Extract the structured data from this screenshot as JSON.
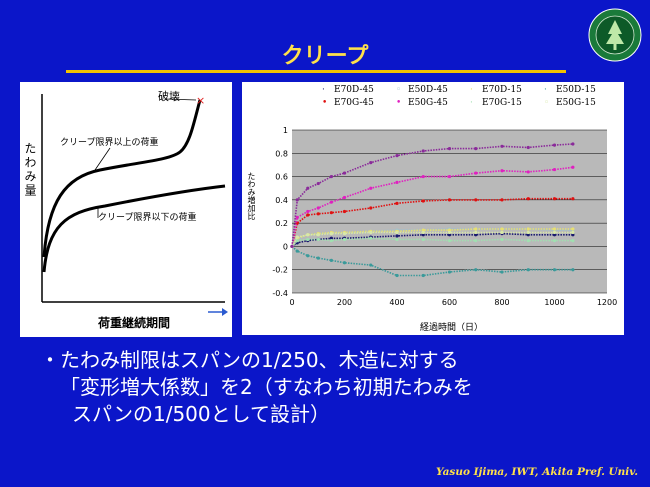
{
  "slide": {
    "title": "クリープ",
    "footer": "Yasuo Ijima, IWT, Akita Pref.  Univ."
  },
  "concept_diagram": {
    "y_axis_label": "たわみ量",
    "x_axis_label": "荷重継続期間",
    "label_failure": "破壊",
    "label_above_limit": "クリープ限界以上の荷重",
    "label_below_limit": "クリープ限界以下の荷重"
  },
  "chart": {
    "ylabel": "たわみ増加比",
    "xlabel": "経過時間（日）"
  },
  "chart_data": {
    "type": "scatter",
    "xlim": [
      0,
      1200
    ],
    "ylim": [
      -0.4,
      1
    ],
    "xticks": [
      "0",
      "200",
      "400",
      "600",
      "800",
      "1000",
      "1200"
    ],
    "yticks": [
      "-0.4",
      "-0.2",
      "0",
      "0.2",
      "0.4",
      "0.6",
      "0.8",
      "1"
    ],
    "grid": true,
    "legend_position": "top",
    "series": [
      {
        "name": "E70D-45",
        "color": "#1a1a6e",
        "marker": "·",
        "x": [
          0,
          20,
          60,
          100,
          150,
          200,
          300,
          400,
          500,
          600,
          700,
          800,
          900,
          1000,
          1070
        ],
        "y": [
          0.0,
          0.03,
          0.05,
          0.06,
          0.07,
          0.07,
          0.08,
          0.09,
          0.1,
          0.1,
          0.1,
          0.11,
          0.1,
          0.1,
          0.1
        ]
      },
      {
        "name": "E50D-45",
        "color": "#9ec0d0",
        "marker": "◦",
        "x": [
          0,
          20,
          60,
          100,
          150,
          200,
          300,
          400,
          500,
          600,
          700,
          800,
          900,
          1000,
          1070
        ],
        "y": [
          0.0,
          0.06,
          0.1,
          0.11,
          0.12,
          0.12,
          0.13,
          0.14,
          0.14,
          0.15,
          0.15,
          0.15,
          0.15,
          0.14,
          0.14
        ]
      },
      {
        "name": "E70D-15",
        "color": "#e8e070",
        "marker": "·",
        "x": [
          0,
          20,
          60,
          100,
          150,
          200,
          300,
          400,
          500,
          600,
          700,
          800,
          900,
          1000,
          1070
        ],
        "y": [
          0.0,
          0.07,
          0.1,
          0.11,
          0.12,
          0.12,
          0.13,
          0.13,
          0.14,
          0.14,
          0.15,
          0.15,
          0.15,
          0.15,
          0.15
        ]
      },
      {
        "name": "E50D-15",
        "color": "#3a9a9a",
        "marker": "·",
        "x": [
          0,
          20,
          60,
          100,
          150,
          200,
          300,
          400,
          500,
          600,
          700,
          800,
          900,
          1000,
          1070
        ],
        "y": [
          0.0,
          -0.04,
          -0.08,
          -0.1,
          -0.12,
          -0.14,
          -0.16,
          -0.25,
          -0.25,
          -0.22,
          -0.2,
          -0.22,
          -0.2,
          -0.2,
          -0.2
        ]
      },
      {
        "name": "E70G-45",
        "color": "#e01010",
        "marker": "•",
        "x": [
          0,
          20,
          60,
          100,
          150,
          200,
          300,
          400,
          500,
          600,
          700,
          800,
          900,
          1000,
          1070
        ],
        "y": [
          0.0,
          0.2,
          0.27,
          0.28,
          0.29,
          0.3,
          0.33,
          0.37,
          0.39,
          0.4,
          0.4,
          0.4,
          0.41,
          0.41,
          0.41
        ]
      },
      {
        "name": "E50G-45",
        "color": "#e020c0",
        "marker": "•",
        "x": [
          0,
          20,
          60,
          100,
          150,
          200,
          300,
          400,
          500,
          600,
          700,
          800,
          900,
          1000,
          1070
        ],
        "y": [
          0.0,
          0.25,
          0.3,
          0.33,
          0.38,
          0.42,
          0.5,
          0.55,
          0.6,
          0.6,
          0.63,
          0.65,
          0.64,
          0.66,
          0.68
        ]
      },
      {
        "name": "E70G-15",
        "color": "#a0e0b0",
        "marker": "·",
        "x": [
          0,
          20,
          60,
          100,
          150,
          200,
          300,
          400,
          500,
          600,
          700,
          800,
          900,
          1000,
          1070
        ],
        "y": [
          0.0,
          0.05,
          0.06,
          0.06,
          0.05,
          0.06,
          0.07,
          0.06,
          0.06,
          0.05,
          0.05,
          0.06,
          0.05,
          0.05,
          0.05
        ]
      },
      {
        "name": "E50G-15",
        "color": "#d8e8a8",
        "marker": "◦",
        "x": [
          0,
          20,
          60,
          100,
          150,
          200,
          300,
          400,
          500,
          600,
          700,
          800,
          900,
          1000,
          1070
        ],
        "y": [
          0.0,
          0.08,
          0.1,
          0.1,
          0.11,
          0.11,
          0.12,
          0.12,
          0.12,
          0.12,
          0.12,
          0.12,
          0.12,
          0.12,
          0.12
        ]
      },
      {
        "name": "",
        "color": "#8a2a9a",
        "marker": "·",
        "x": [
          0,
          20,
          60,
          100,
          150,
          200,
          300,
          400,
          500,
          600,
          700,
          800,
          900,
          1000,
          1070
        ],
        "y": [
          0.0,
          0.4,
          0.5,
          0.54,
          0.6,
          0.63,
          0.72,
          0.78,
          0.82,
          0.84,
          0.84,
          0.86,
          0.85,
          0.87,
          0.88
        ]
      }
    ]
  },
  "body_text": {
    "bullet": "・",
    "line1": "たわみ制限はスパンの1/250、木造に対する",
    "line2": "「変形増大係数」を2（すなわち初期たわみを",
    "line3": "スパンの1/500として設計）"
  }
}
